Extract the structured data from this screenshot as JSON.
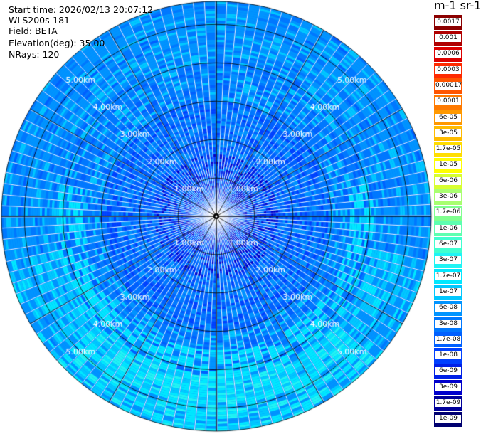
{
  "header": {
    "start_time": "Start time: 2026/02/13 20:07:12",
    "instrument": "WLS200s-181",
    "field": "Field: BETA",
    "elevation": "Elevation(deg): 35.00",
    "nrays": "NRays: 120"
  },
  "colorbar": {
    "title": "m-1 sr-1",
    "labels": [
      "0.0017",
      "0.001",
      "0.0006",
      "0.0003",
      "0.00017",
      "0.0001",
      "6e-05",
      "3e-05",
      "1.7e-05",
      "1e-05",
      "6e-06",
      "3e-06",
      "1.7e-06",
      "1e-06",
      "6e-07",
      "3e-07",
      "1.7e-07",
      "1e-07",
      "6e-08",
      "3e-08",
      "1.7e-08",
      "1e-08",
      "6e-09",
      "3e-09",
      "1.7e-09",
      "1e-09"
    ],
    "colors": [
      "#8b0000",
      "#b00000",
      "#dd0000",
      "#ff2a00",
      "#ff5500",
      "#ff7a00",
      "#ff9900",
      "#ffbb00",
      "#ffdd00",
      "#ffff00",
      "#d8ff30",
      "#a8ff70",
      "#80ff90",
      "#5dffb0",
      "#40ffd0",
      "#20f4f4",
      "#00e8ff",
      "#00c8ff",
      "#0094ff",
      "#0078ff",
      "#0060ff",
      "#0040ff",
      "#0020e6",
      "#0000cc",
      "#00009a",
      "#000070"
    ]
  },
  "chart_data": {
    "type": "heatmap",
    "projection": "polar PPI",
    "field": "BETA",
    "nrays": 120,
    "range_rings_km": [
      1,
      2,
      3,
      4,
      5
    ],
    "ring_labels": [
      "1.00km",
      "2.00km",
      "3.00km",
      "4.00km",
      "5.00km"
    ],
    "max_range_km": 5.6,
    "grid": true,
    "scale": "log",
    "value_range": [
      1e-09,
      0.0017
    ],
    "center_value_typical": "3e-09",
    "mid_range_value_typical": "3e-08",
    "far_ring_value_typical": "1e-07 to 1.7e-07"
  }
}
